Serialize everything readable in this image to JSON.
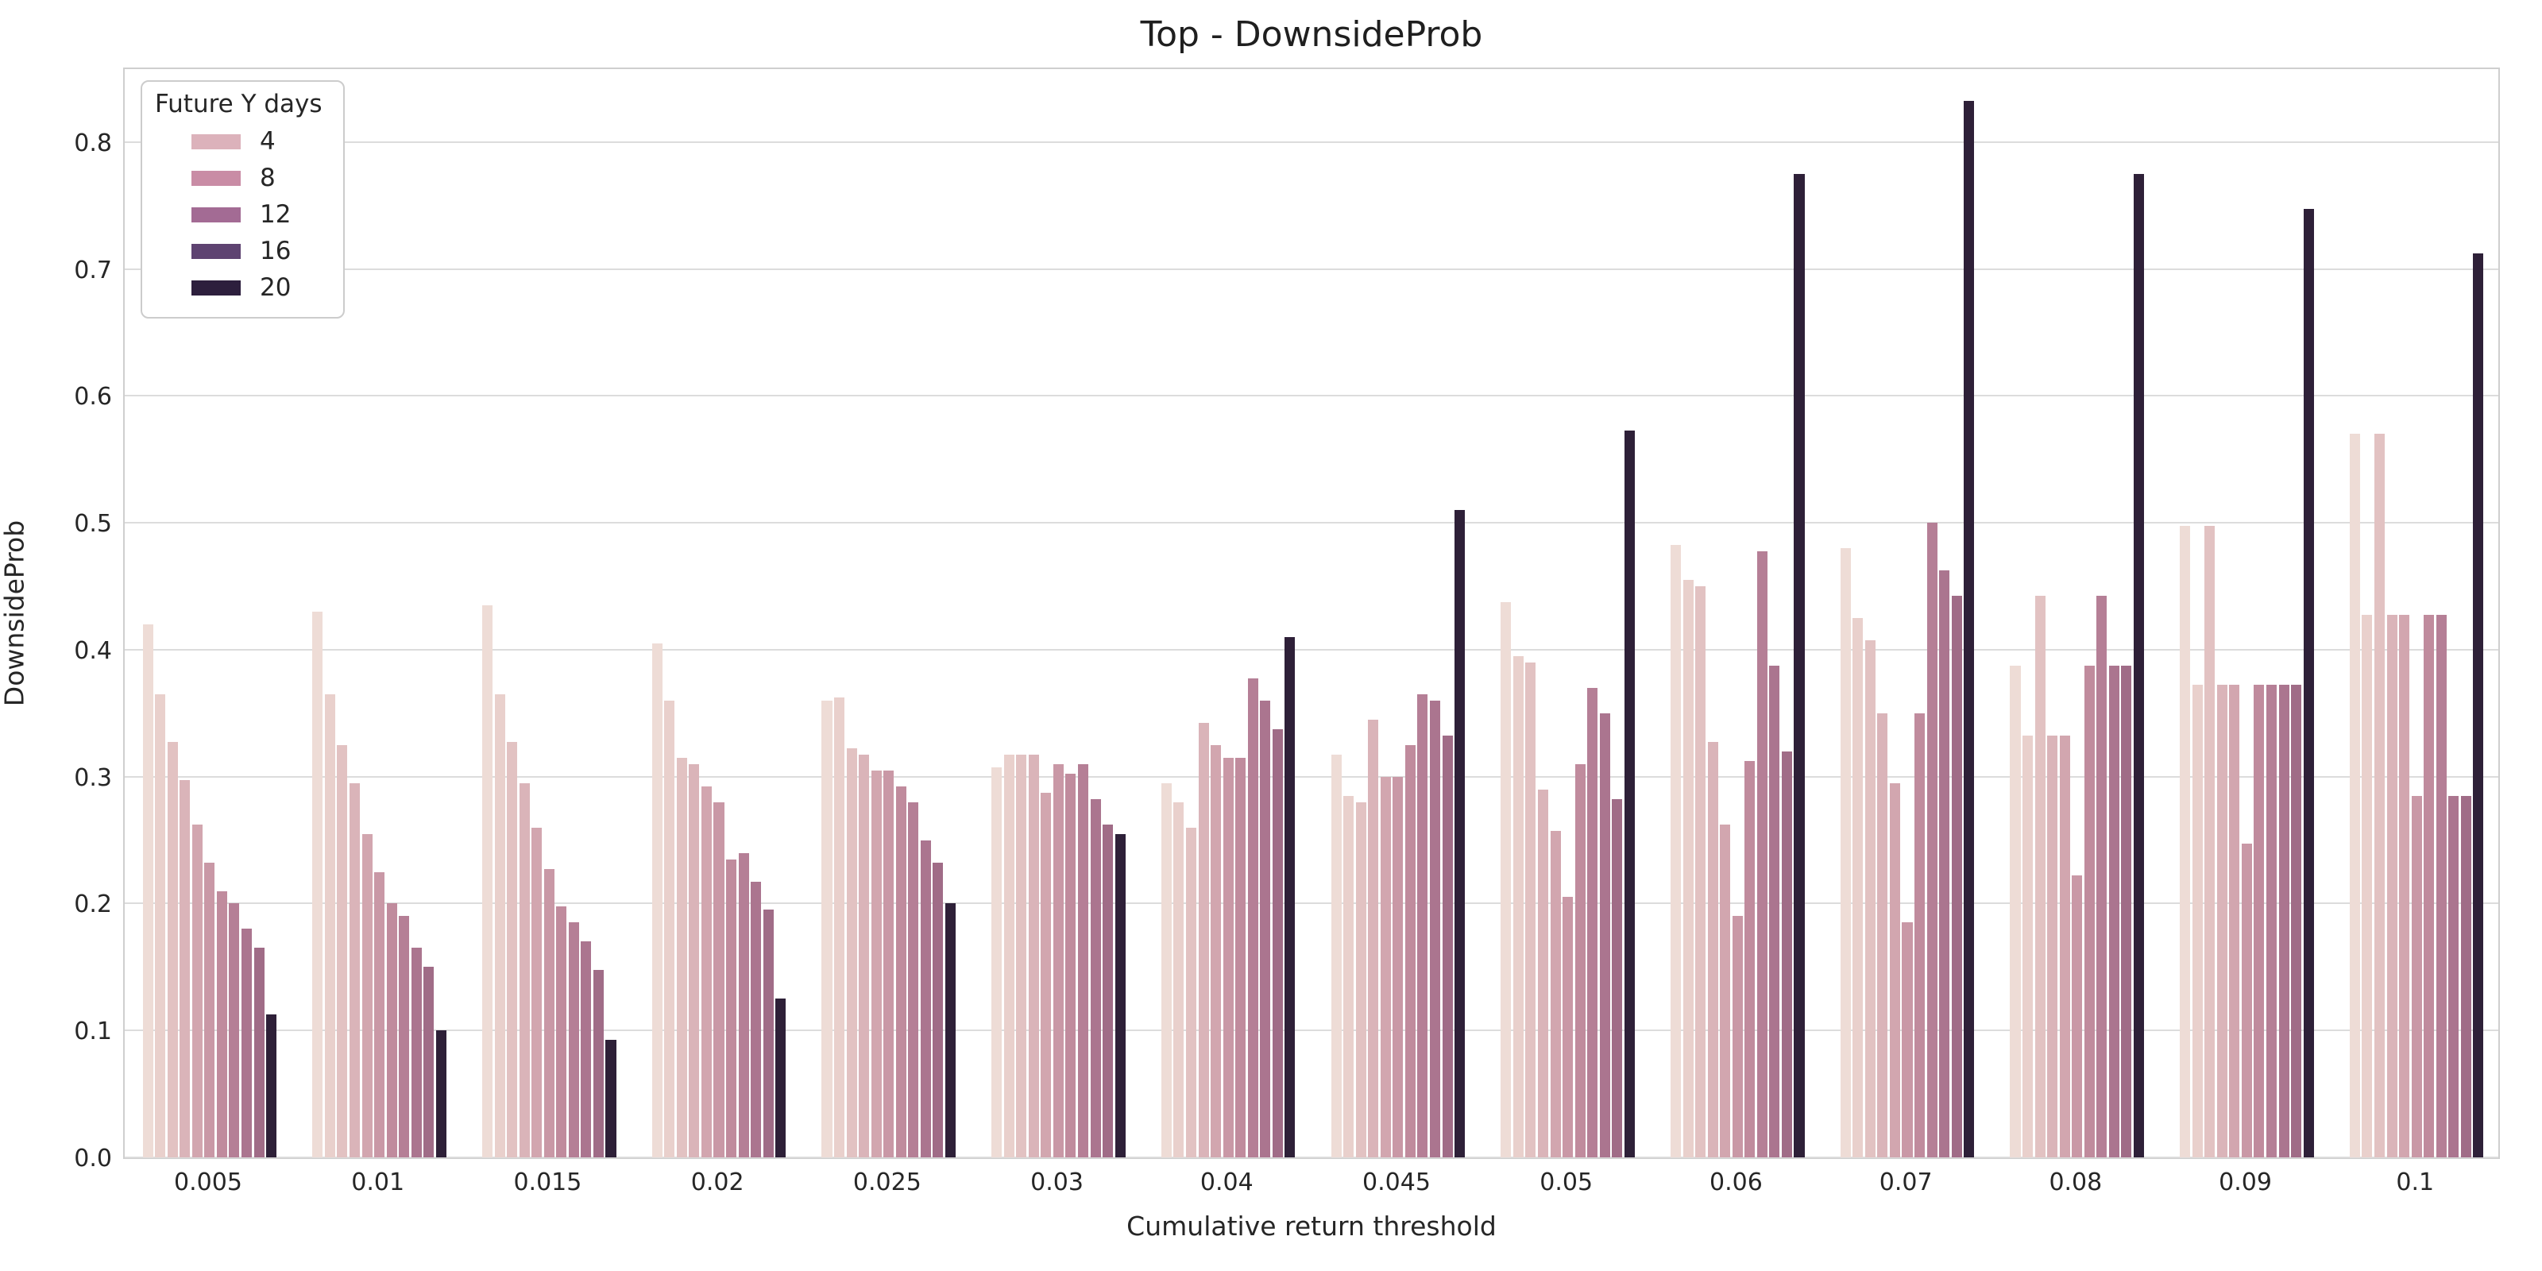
{
  "chart_data": {
    "type": "bar",
    "title": "Top - DownsideProb",
    "xlabel": "Cumulative return threshold",
    "ylabel": "DownsideProb",
    "categories": [
      "0.005",
      "0.01",
      "0.015",
      "0.02",
      "0.025",
      "0.03",
      "0.04",
      "0.045",
      "0.05",
      "0.06",
      "0.07",
      "0.08",
      "0.09",
      "0.1"
    ],
    "yticks": [
      "0.0",
      "0.1",
      "0.2",
      "0.3",
      "0.4",
      "0.5",
      "0.6",
      "0.7",
      "0.8"
    ],
    "ylim": [
      0,
      0.86
    ],
    "grid": "horizontal",
    "legend": {
      "title": "Future Y days",
      "position": "upper-left",
      "entries": [
        {
          "label": "4",
          "color": "#dcb2bb"
        },
        {
          "label": "8",
          "color": "#c98ca5"
        },
        {
          "label": "12",
          "color": "#a36b94"
        },
        {
          "label": "16",
          "color": "#5e4371"
        },
        {
          "label": "20",
          "color": "#2d1f3d"
        }
      ]
    },
    "series": [
      {
        "name": "s1",
        "color": "#eedcd6",
        "values": [
          0.42,
          0.43,
          0.435,
          0.405,
          0.36,
          0.3075,
          0.295,
          0.3175,
          0.4375,
          0.4825,
          0.48,
          0.3875,
          0.4975,
          0.57
        ]
      },
      {
        "name": "s2",
        "color": "#e9d0cc",
        "values": [
          0.365,
          0.365,
          0.365,
          0.36,
          0.3625,
          0.3175,
          0.28,
          0.285,
          0.395,
          0.455,
          0.425,
          0.3325,
          0.3725,
          0.4275
        ]
      },
      {
        "name": "s3",
        "color": "#e2c2c2",
        "values": [
          0.3275,
          0.325,
          0.3275,
          0.315,
          0.3225,
          0.3175,
          0.26,
          0.28,
          0.39,
          0.45,
          0.4075,
          0.4425,
          0.4975,
          0.57
        ]
      },
      {
        "name": "s4",
        "color": "#dab4b9",
        "values": [
          0.2975,
          0.295,
          0.295,
          0.31,
          0.3175,
          0.3175,
          0.3425,
          0.345,
          0.29,
          0.3275,
          0.35,
          0.3325,
          0.3725,
          0.4275
        ]
      },
      {
        "name": "s5",
        "color": "#d2a6af",
        "values": [
          0.2625,
          0.255,
          0.26,
          0.2925,
          0.305,
          0.2875,
          0.325,
          0.3,
          0.2575,
          0.2625,
          0.295,
          0.3325,
          0.3725,
          0.4275
        ]
      },
      {
        "name": "s6",
        "color": "#c998a6",
        "values": [
          0.2325,
          0.225,
          0.2275,
          0.28,
          0.305,
          0.31,
          0.315,
          0.3,
          0.205,
          0.19,
          0.185,
          0.2225,
          0.2475,
          0.285
        ]
      },
      {
        "name": "s7",
        "color": "#c08b9d",
        "values": [
          0.21,
          0.2,
          0.1975,
          0.235,
          0.2925,
          0.3025,
          0.315,
          0.325,
          0.31,
          0.3125,
          0.35,
          0.3875,
          0.3725,
          0.4275
        ]
      },
      {
        "name": "s8",
        "color": "#b57f96",
        "values": [
          0.2,
          0.19,
          0.185,
          0.24,
          0.28,
          0.31,
          0.3775,
          0.365,
          0.37,
          0.4775,
          0.5,
          0.4425,
          0.3725,
          0.4275
        ]
      },
      {
        "name": "s9",
        "color": "#ab758f",
        "values": [
          0.18,
          0.165,
          0.17,
          0.2175,
          0.25,
          0.2825,
          0.36,
          0.36,
          0.35,
          0.3875,
          0.4625,
          0.3875,
          0.3725,
          0.285
        ]
      },
      {
        "name": "s10",
        "color": "#a06c87",
        "values": [
          0.165,
          0.15,
          0.1475,
          0.195,
          0.2325,
          0.2625,
          0.3375,
          0.3325,
          0.2825,
          0.32,
          0.4425,
          0.3875,
          0.3725,
          0.285
        ]
      },
      {
        "name": "s11",
        "color": "#2e2038",
        "values": [
          0.1125,
          0.1,
          0.0925,
          0.125,
          0.2,
          0.255,
          0.41,
          0.51,
          0.5725,
          0.775,
          0.8325,
          0.775,
          0.7475,
          0.7125
        ]
      }
    ]
  },
  "colors": {
    "grid": "#dcdcdc",
    "spine": "#cfcfcf",
    "text": "#262626",
    "background": "#ffffff"
  }
}
